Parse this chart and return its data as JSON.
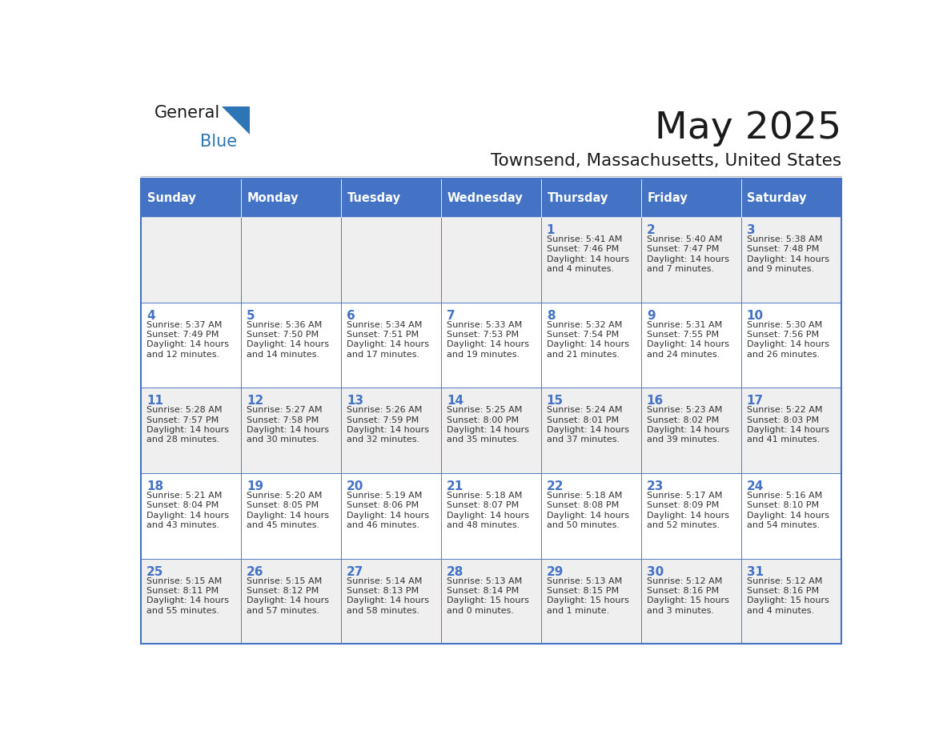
{
  "title": "May 2025",
  "subtitle": "Townsend, Massachusetts, United States",
  "days_of_week": [
    "Sunday",
    "Monday",
    "Tuesday",
    "Wednesday",
    "Thursday",
    "Friday",
    "Saturday"
  ],
  "header_bg": "#4472C4",
  "header_text": "#FFFFFF",
  "row_bg_odd": "#EFEFEF",
  "row_bg_even": "#FFFFFF",
  "cell_border": "#4472C4",
  "day_number_color": "#4472C4",
  "text_color": "#333333",
  "logo_general_color": "#1a1a1a",
  "logo_blue_color": "#2E75B6",
  "weeks": [
    {
      "days": [
        {
          "date": "",
          "sunrise": "",
          "sunset": "",
          "daylight": ""
        },
        {
          "date": "",
          "sunrise": "",
          "sunset": "",
          "daylight": ""
        },
        {
          "date": "",
          "sunrise": "",
          "sunset": "",
          "daylight": ""
        },
        {
          "date": "",
          "sunrise": "",
          "sunset": "",
          "daylight": ""
        },
        {
          "date": "1",
          "sunrise": "5:41 AM",
          "sunset": "7:46 PM",
          "daylight": "14 hours",
          "daylight2": "and 4 minutes."
        },
        {
          "date": "2",
          "sunrise": "5:40 AM",
          "sunset": "7:47 PM",
          "daylight": "14 hours",
          "daylight2": "and 7 minutes."
        },
        {
          "date": "3",
          "sunrise": "5:38 AM",
          "sunset": "7:48 PM",
          "daylight": "14 hours",
          "daylight2": "and 9 minutes."
        }
      ]
    },
    {
      "days": [
        {
          "date": "4",
          "sunrise": "5:37 AM",
          "sunset": "7:49 PM",
          "daylight": "14 hours",
          "daylight2": "and 12 minutes."
        },
        {
          "date": "5",
          "sunrise": "5:36 AM",
          "sunset": "7:50 PM",
          "daylight": "14 hours",
          "daylight2": "and 14 minutes."
        },
        {
          "date": "6",
          "sunrise": "5:34 AM",
          "sunset": "7:51 PM",
          "daylight": "14 hours",
          "daylight2": "and 17 minutes."
        },
        {
          "date": "7",
          "sunrise": "5:33 AM",
          "sunset": "7:53 PM",
          "daylight": "14 hours",
          "daylight2": "and 19 minutes."
        },
        {
          "date": "8",
          "sunrise": "5:32 AM",
          "sunset": "7:54 PM",
          "daylight": "14 hours",
          "daylight2": "and 21 minutes."
        },
        {
          "date": "9",
          "sunrise": "5:31 AM",
          "sunset": "7:55 PM",
          "daylight": "14 hours",
          "daylight2": "and 24 minutes."
        },
        {
          "date": "10",
          "sunrise": "5:30 AM",
          "sunset": "7:56 PM",
          "daylight": "14 hours",
          "daylight2": "and 26 minutes."
        }
      ]
    },
    {
      "days": [
        {
          "date": "11",
          "sunrise": "5:28 AM",
          "sunset": "7:57 PM",
          "daylight": "14 hours",
          "daylight2": "and 28 minutes."
        },
        {
          "date": "12",
          "sunrise": "5:27 AM",
          "sunset": "7:58 PM",
          "daylight": "14 hours",
          "daylight2": "and 30 minutes."
        },
        {
          "date": "13",
          "sunrise": "5:26 AM",
          "sunset": "7:59 PM",
          "daylight": "14 hours",
          "daylight2": "and 32 minutes."
        },
        {
          "date": "14",
          "sunrise": "5:25 AM",
          "sunset": "8:00 PM",
          "daylight": "14 hours",
          "daylight2": "and 35 minutes."
        },
        {
          "date": "15",
          "sunrise": "5:24 AM",
          "sunset": "8:01 PM",
          "daylight": "14 hours",
          "daylight2": "and 37 minutes."
        },
        {
          "date": "16",
          "sunrise": "5:23 AM",
          "sunset": "8:02 PM",
          "daylight": "14 hours",
          "daylight2": "and 39 minutes."
        },
        {
          "date": "17",
          "sunrise": "5:22 AM",
          "sunset": "8:03 PM",
          "daylight": "14 hours",
          "daylight2": "and 41 minutes."
        }
      ]
    },
    {
      "days": [
        {
          "date": "18",
          "sunrise": "5:21 AM",
          "sunset": "8:04 PM",
          "daylight": "14 hours",
          "daylight2": "and 43 minutes."
        },
        {
          "date": "19",
          "sunrise": "5:20 AM",
          "sunset": "8:05 PM",
          "daylight": "14 hours",
          "daylight2": "and 45 minutes."
        },
        {
          "date": "20",
          "sunrise": "5:19 AM",
          "sunset": "8:06 PM",
          "daylight": "14 hours",
          "daylight2": "and 46 minutes."
        },
        {
          "date": "21",
          "sunrise": "5:18 AM",
          "sunset": "8:07 PM",
          "daylight": "14 hours",
          "daylight2": "and 48 minutes."
        },
        {
          "date": "22",
          "sunrise": "5:18 AM",
          "sunset": "8:08 PM",
          "daylight": "14 hours",
          "daylight2": "and 50 minutes."
        },
        {
          "date": "23",
          "sunrise": "5:17 AM",
          "sunset": "8:09 PM",
          "daylight": "14 hours",
          "daylight2": "and 52 minutes."
        },
        {
          "date": "24",
          "sunrise": "5:16 AM",
          "sunset": "8:10 PM",
          "daylight": "14 hours",
          "daylight2": "and 54 minutes."
        }
      ]
    },
    {
      "days": [
        {
          "date": "25",
          "sunrise": "5:15 AM",
          "sunset": "8:11 PM",
          "daylight": "14 hours",
          "daylight2": "and 55 minutes."
        },
        {
          "date": "26",
          "sunrise": "5:15 AM",
          "sunset": "8:12 PM",
          "daylight": "14 hours",
          "daylight2": "and 57 minutes."
        },
        {
          "date": "27",
          "sunrise": "5:14 AM",
          "sunset": "8:13 PM",
          "daylight": "14 hours",
          "daylight2": "and 58 minutes."
        },
        {
          "date": "28",
          "sunrise": "5:13 AM",
          "sunset": "8:14 PM",
          "daylight": "15 hours",
          "daylight2": "and 0 minutes."
        },
        {
          "date": "29",
          "sunrise": "5:13 AM",
          "sunset": "8:15 PM",
          "daylight": "15 hours",
          "daylight2": "and 1 minute."
        },
        {
          "date": "30",
          "sunrise": "5:12 AM",
          "sunset": "8:16 PM",
          "daylight": "15 hours",
          "daylight2": "and 3 minutes."
        },
        {
          "date": "31",
          "sunrise": "5:12 AM",
          "sunset": "8:16 PM",
          "daylight": "15 hours",
          "daylight2": "and 4 minutes."
        }
      ]
    }
  ]
}
